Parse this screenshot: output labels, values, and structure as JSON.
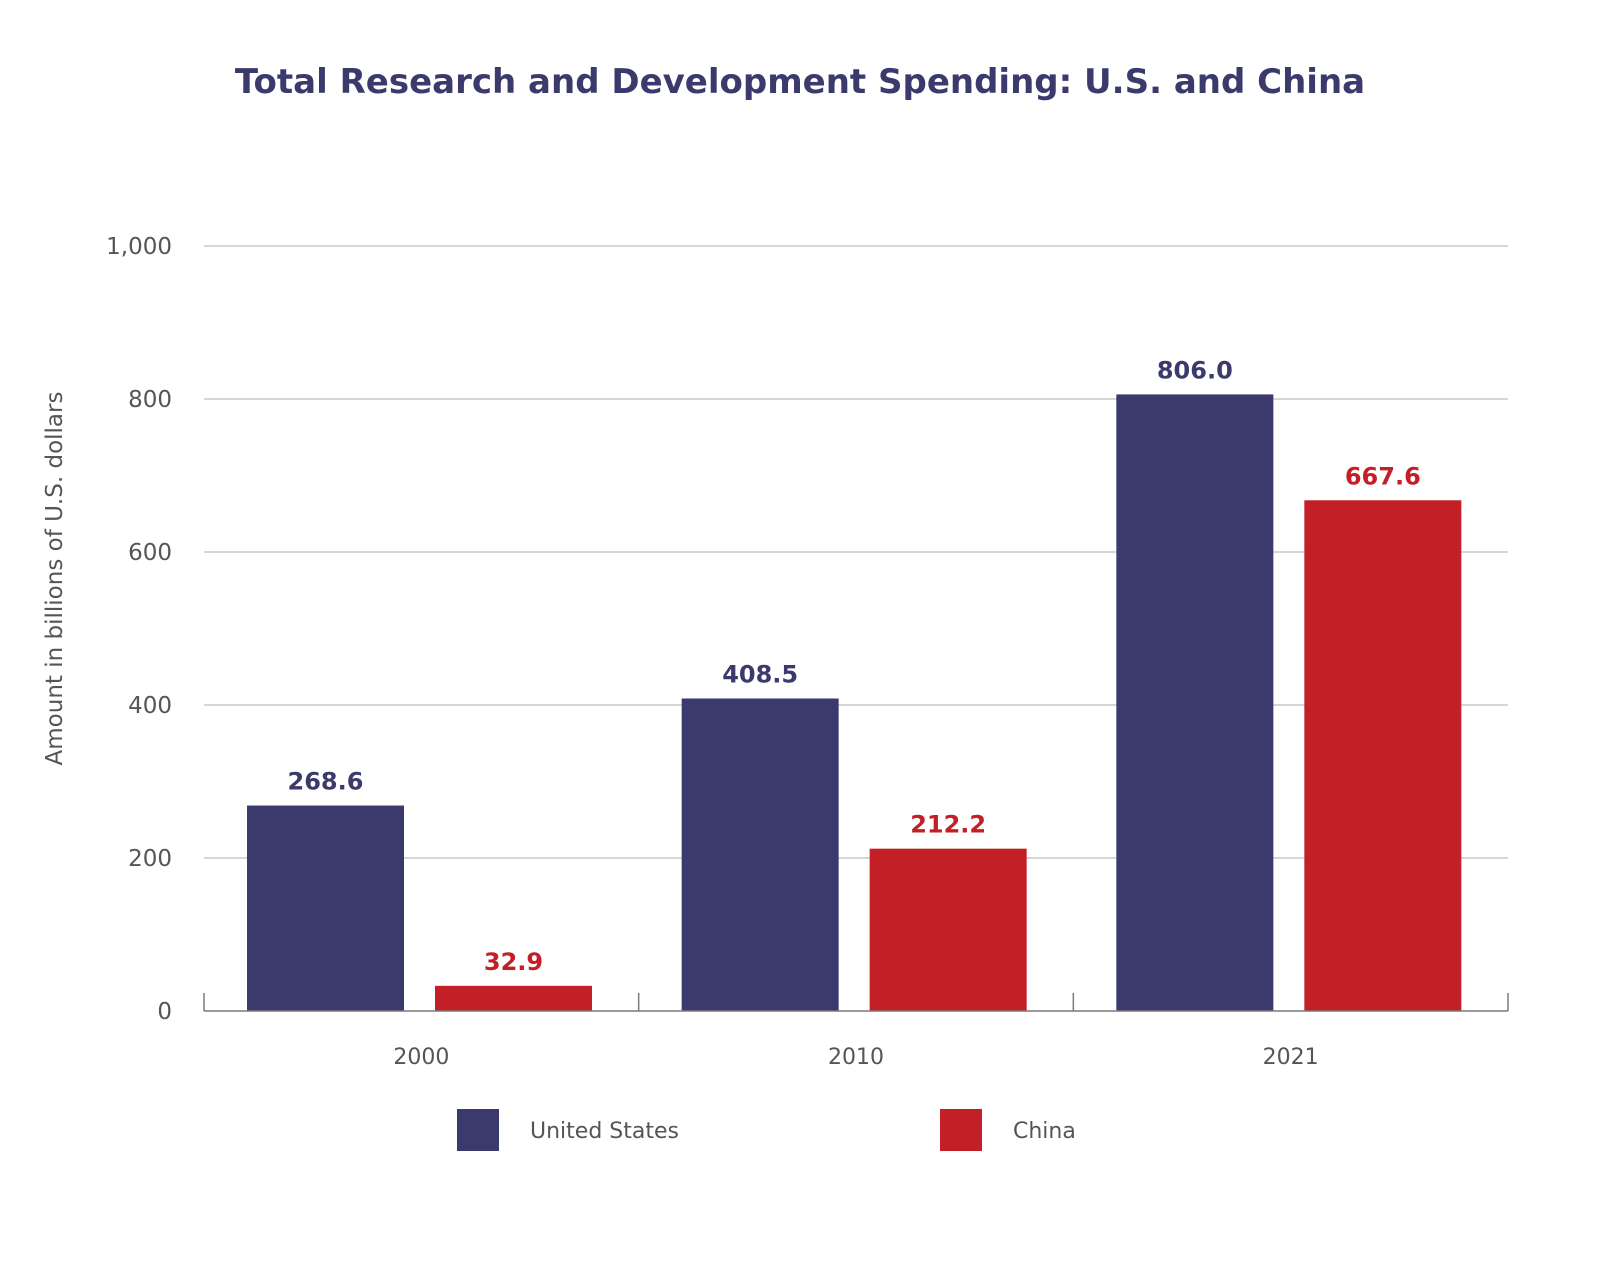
{
  "chart_data": {
    "type": "bar",
    "title": "Total Research and Development Spending: U.S. and China",
    "xlabel": "",
    "ylabel": "Amount in billions of U.S. dollars",
    "categories": [
      "2000",
      "2010",
      "2021"
    ],
    "series": [
      {
        "name": "United States",
        "color": "#3b3a6d",
        "values": [
          268.6,
          408.5,
          806.0
        ],
        "labels": [
          "268.6",
          "408.5",
          "806.0"
        ]
      },
      {
        "name": "China",
        "color": "#c31f26",
        "values": [
          32.9,
          212.2,
          667.6
        ],
        "labels": [
          "32.9",
          "212.2",
          "667.6"
        ]
      }
    ],
    "ylim": [
      0,
      1000
    ],
    "yticks": [
      0,
      200,
      400,
      600,
      800,
      1000
    ],
    "ytick_labels": [
      "0",
      "200",
      "400",
      "600",
      "800",
      "1,000"
    ],
    "grid": true,
    "legend_position": "bottom-center"
  }
}
